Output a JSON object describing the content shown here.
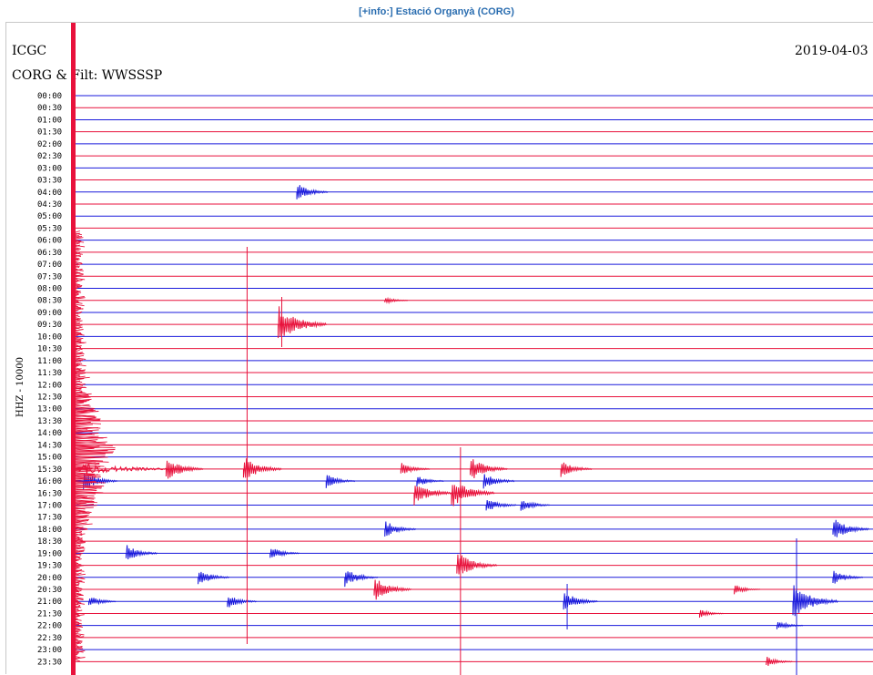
{
  "link": {
    "text": "[+info:] Estació Organyà (CORG)"
  },
  "header": {
    "org": "ICGC",
    "date": "2019-04-03",
    "station_line": "CORG & Filt: WWSSSP",
    "vertical_label": "HHZ - 10000"
  },
  "colors": {
    "odd": "#1a1adc",
    "even": "#e8123c",
    "link": "#2a6db0"
  },
  "chart_data": {
    "type": "line",
    "title": "",
    "rows": [
      "00:00",
      "00:30",
      "01:00",
      "01:30",
      "02:00",
      "02:30",
      "03:00",
      "03:30",
      "04:00",
      "04:30",
      "05:00",
      "05:30",
      "06:00",
      "06:30",
      "07:00",
      "07:30",
      "08:00",
      "08:30",
      "09:00",
      "09:30",
      "10:00",
      "10:30",
      "11:00",
      "11:30",
      "12:00",
      "12:30",
      "13:00",
      "13:30",
      "14:00",
      "14:30",
      "15:00",
      "15:30",
      "16:00",
      "16:30",
      "17:00",
      "17:30",
      "18:00",
      "18:30",
      "19:00",
      "19:30",
      "20:00",
      "20:30",
      "21:00",
      "21:30",
      "22:00",
      "22:30",
      "23:00",
      "23:30"
    ],
    "x_range_minutes": [
      0,
      30
    ],
    "events": [
      {
        "row": "04:00",
        "minute": 8.5,
        "amp": 1.0
      },
      {
        "row": "08:30",
        "minute": 11.8,
        "amp": 0.4
      },
      {
        "row": "09:30",
        "minute": 7.8,
        "amp": 2.2
      },
      {
        "row": "15:30",
        "minute": 3.6,
        "amp": 1.4
      },
      {
        "row": "15:30",
        "minute": 6.5,
        "amp": 1.5
      },
      {
        "row": "15:30",
        "minute": 12.4,
        "amp": 0.8
      },
      {
        "row": "15:30",
        "minute": 15.0,
        "amp": 1.4
      },
      {
        "row": "15:30",
        "minute": 18.4,
        "amp": 1.0
      },
      {
        "row": "16:00",
        "minute": 0.5,
        "amp": 1.2
      },
      {
        "row": "16:00",
        "minute": 9.6,
        "amp": 0.8
      },
      {
        "row": "16:00",
        "minute": 13.0,
        "amp": 0.7
      },
      {
        "row": "16:00",
        "minute": 15.5,
        "amp": 1.0
      },
      {
        "row": "16:30",
        "minute": 12.9,
        "amp": 1.4
      },
      {
        "row": "16:30",
        "minute": 14.3,
        "amp": 1.8
      },
      {
        "row": "17:00",
        "minute": 15.6,
        "amp": 0.9
      },
      {
        "row": "17:00",
        "minute": 16.9,
        "amp": 0.8
      },
      {
        "row": "18:00",
        "minute": 11.8,
        "amp": 1.0
      },
      {
        "row": "18:00",
        "minute": 28.6,
        "amp": 1.3
      },
      {
        "row": "19:00",
        "minute": 2.1,
        "amp": 1.0
      },
      {
        "row": "19:00",
        "minute": 7.5,
        "amp": 0.8
      },
      {
        "row": "19:30",
        "minute": 14.5,
        "amp": 1.6
      },
      {
        "row": "20:00",
        "minute": 4.8,
        "amp": 1.0
      },
      {
        "row": "20:00",
        "minute": 10.3,
        "amp": 1.1
      },
      {
        "row": "20:00",
        "minute": 28.6,
        "amp": 0.9
      },
      {
        "row": "20:30",
        "minute": 11.4,
        "amp": 1.4
      },
      {
        "row": "20:30",
        "minute": 24.9,
        "amp": 0.6
      },
      {
        "row": "21:00",
        "minute": 0.7,
        "amp": 0.7
      },
      {
        "row": "21:00",
        "minute": 5.9,
        "amp": 0.8
      },
      {
        "row": "21:00",
        "minute": 18.5,
        "amp": 1.2
      },
      {
        "row": "21:00",
        "minute": 27.1,
        "amp": 2.0
      },
      {
        "row": "21:30",
        "minute": 23.6,
        "amp": 0.5
      },
      {
        "row": "22:00",
        "minute": 26.5,
        "amp": 0.6
      },
      {
        "row": "23:30",
        "minute": 26.1,
        "amp": 0.6
      }
    ]
  }
}
